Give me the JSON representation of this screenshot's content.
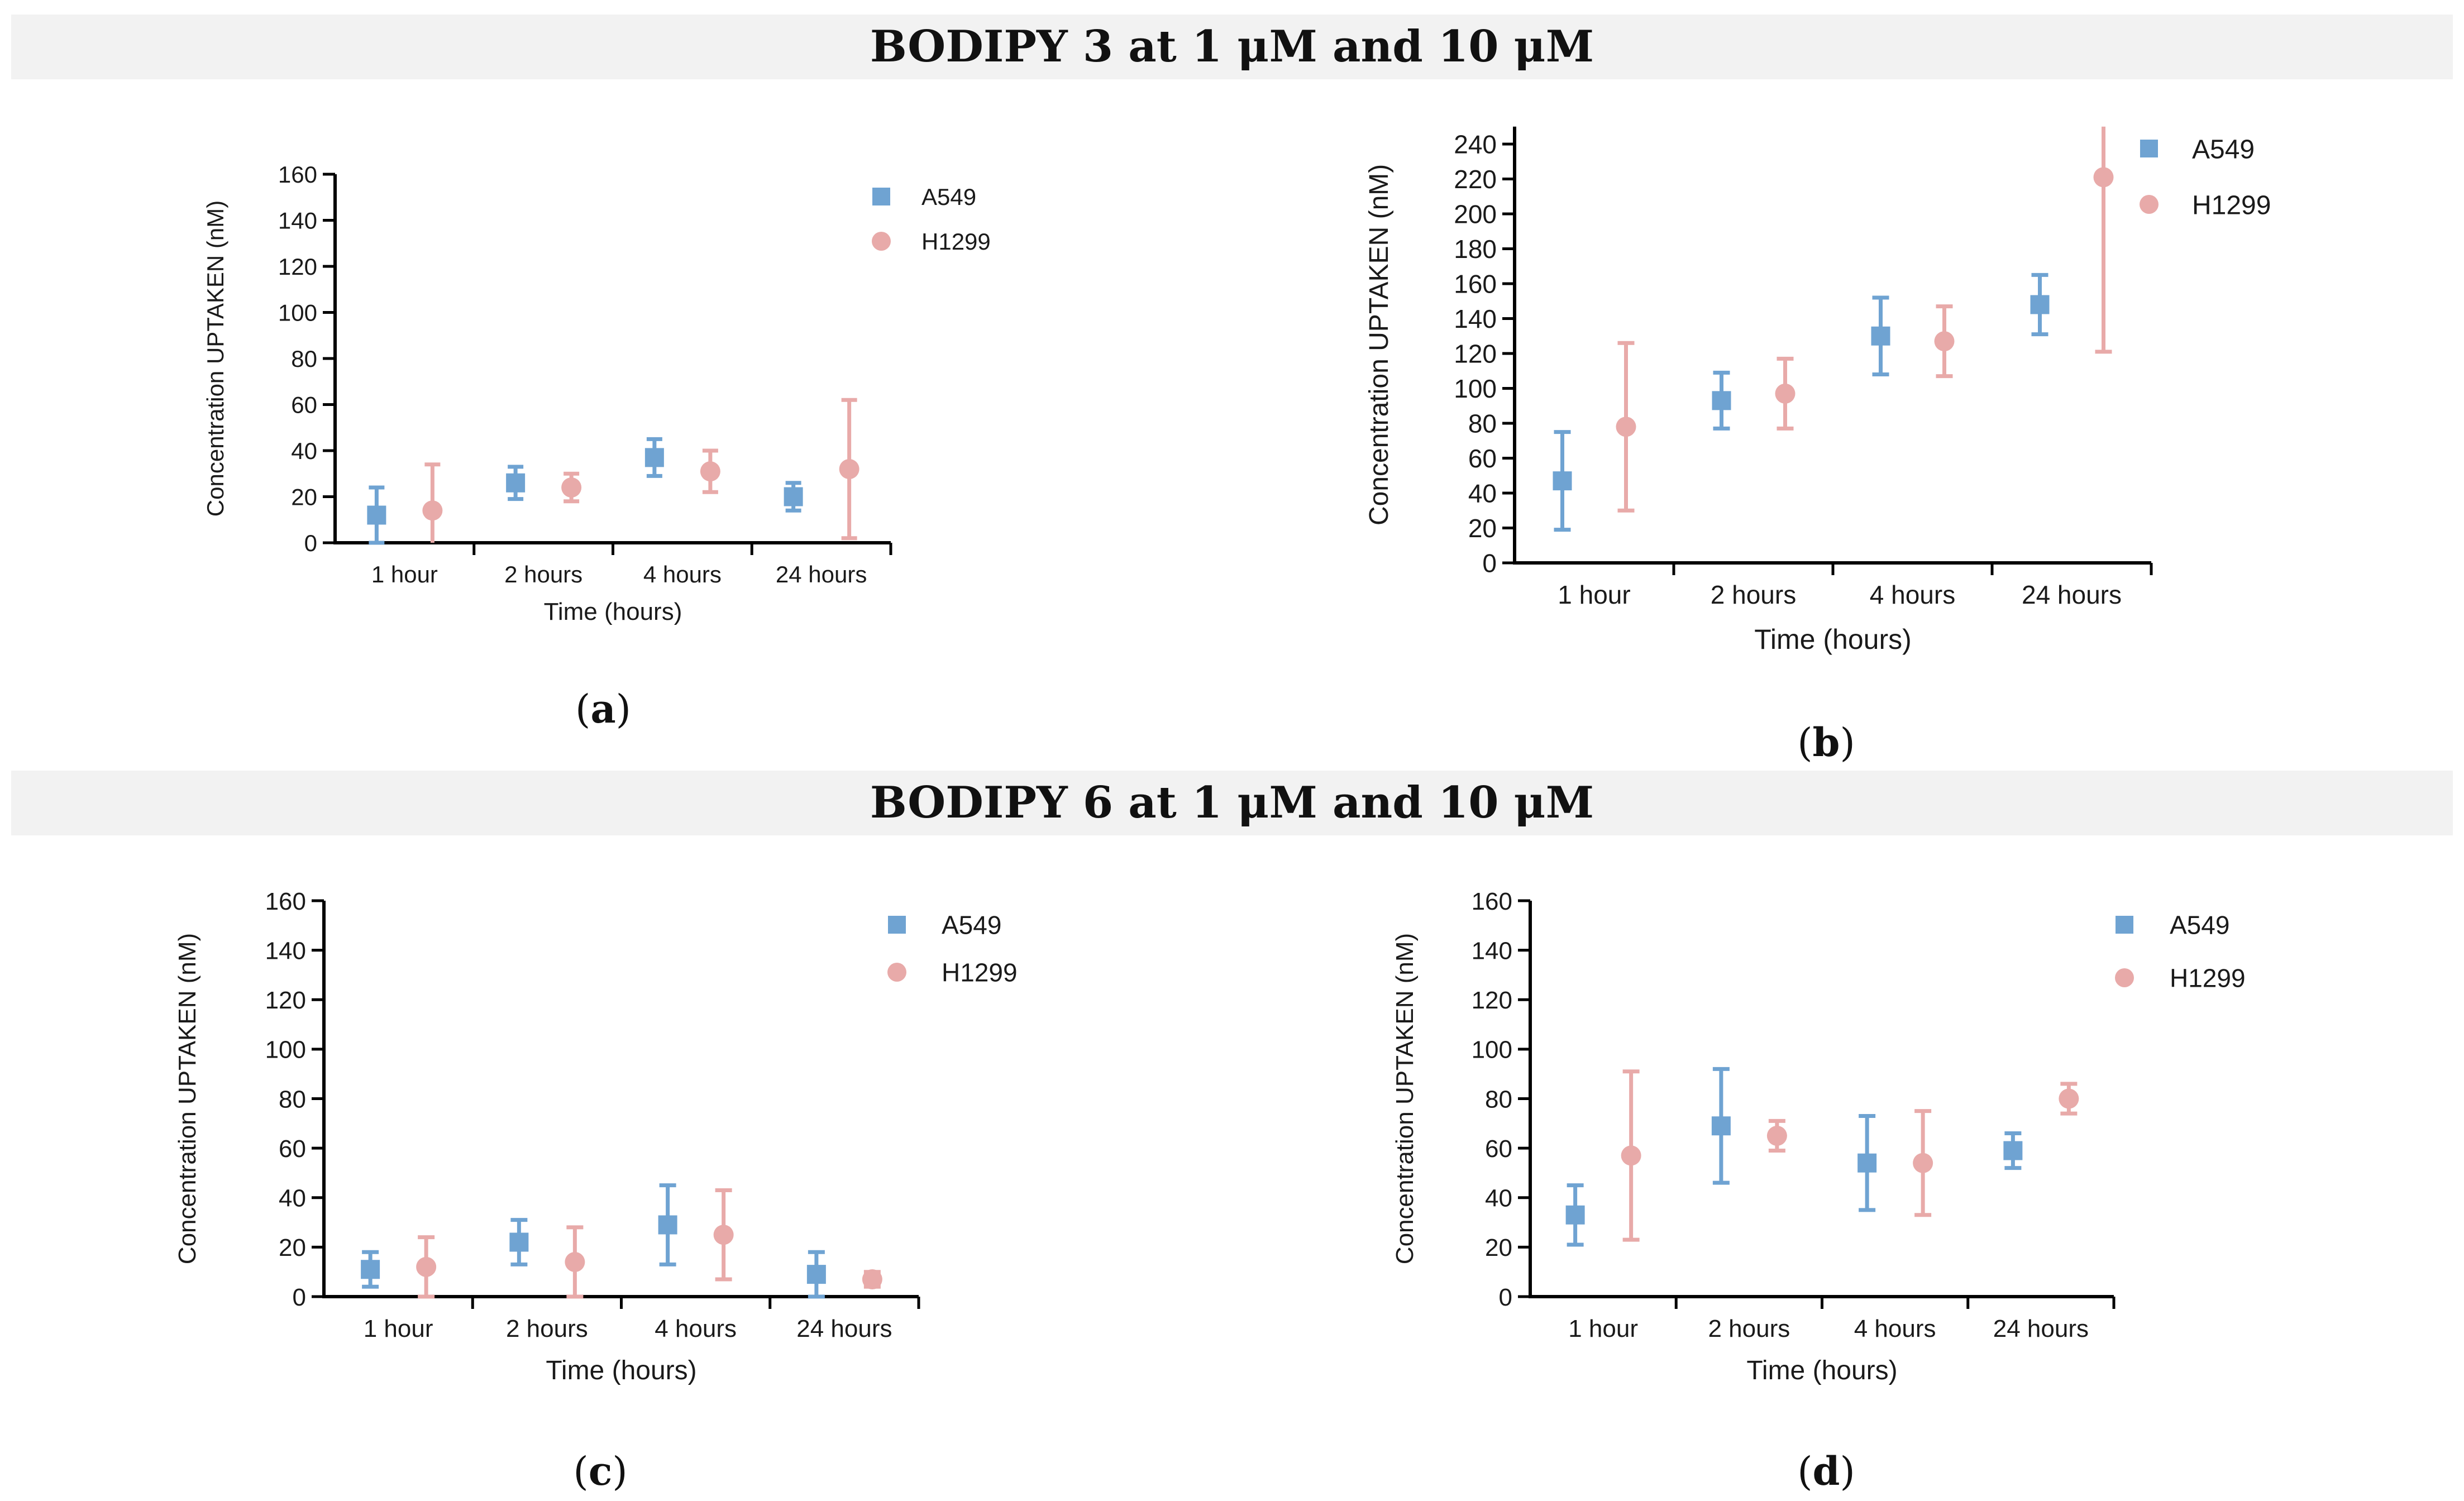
{
  "sections": [
    {
      "title": "BODIPY 3 at 1 μM and 10 μM"
    },
    {
      "title": "BODIPY 6 at 1 μM and 10 μM"
    }
  ],
  "colors": {
    "A549": "#6fa3d2",
    "H1299": "#e8aaa9",
    "axis": "#000000",
    "section_bg": "#f2f2f2"
  },
  "chart_data": [
    {
      "panel": "a",
      "panel_label": "a",
      "type": "scatter",
      "title": "",
      "xlabel": "Time (hours)",
      "ylabel": "Concentration UPTAKEN (nM)",
      "categories": [
        "1 hour",
        "2 hours",
        "4 hours",
        "24 hours"
      ],
      "ylim": [
        0,
        160
      ],
      "yticks": [
        0,
        20,
        40,
        60,
        80,
        100,
        120,
        140,
        160
      ],
      "legend_position": "top-right",
      "series": [
        {
          "name": "A549",
          "marker": "square",
          "values": [
            12,
            26,
            37,
            20
          ],
          "errors": [
            12,
            7,
            8,
            6
          ]
        },
        {
          "name": "H1299",
          "marker": "circle",
          "values": [
            14,
            24,
            31,
            32
          ],
          "errors": [
            20,
            6,
            9,
            30
          ]
        }
      ]
    },
    {
      "panel": "b",
      "panel_label": "b",
      "type": "scatter",
      "title": "",
      "xlabel": "Time (hours)",
      "ylabel": "Concentration UPTAKEN (nM)",
      "categories": [
        "1 hour",
        "2 hours",
        "4 hours",
        "24 hours"
      ],
      "ylim": [
        0,
        250
      ],
      "yticks": [
        0,
        20,
        40,
        60,
        80,
        100,
        120,
        140,
        160,
        180,
        200,
        220,
        240
      ],
      "legend_position": "top-right",
      "series": [
        {
          "name": "A549",
          "marker": "square",
          "values": [
            47,
            93,
            130,
            148
          ],
          "errors": [
            28,
            16,
            22,
            17
          ]
        },
        {
          "name": "H1299",
          "marker": "circle",
          "values": [
            78,
            97,
            127,
            221
          ],
          "errors": [
            48,
            20,
            20,
            100
          ]
        }
      ]
    },
    {
      "panel": "c",
      "panel_label": "c",
      "type": "scatter",
      "title": "",
      "xlabel": "Time (hours)",
      "ylabel": "Concentration UPTAKEN (nM)",
      "categories": [
        "1 hour",
        "2 hours",
        "4 hours",
        "24 hours"
      ],
      "ylim": [
        0,
        160
      ],
      "yticks": [
        0,
        20,
        40,
        60,
        80,
        100,
        120,
        140,
        160
      ],
      "legend_position": "top-right",
      "series": [
        {
          "name": "A549",
          "marker": "square",
          "values": [
            11,
            22,
            29,
            9
          ],
          "errors": [
            7,
            9,
            16,
            9
          ]
        },
        {
          "name": "H1299",
          "marker": "circle",
          "values": [
            12,
            14,
            25,
            7
          ],
          "errors": [
            12,
            14,
            18,
            3
          ]
        }
      ]
    },
    {
      "panel": "d",
      "panel_label": "d",
      "type": "scatter",
      "title": "",
      "xlabel": "Time (hours)",
      "ylabel": "Concentration UPTAKEN (nM)",
      "categories": [
        "1 hour",
        "2 hours",
        "4 hours",
        "24 hours"
      ],
      "ylim": [
        0,
        160
      ],
      "yticks": [
        0,
        20,
        40,
        60,
        80,
        100,
        120,
        140,
        160
      ],
      "legend_position": "top-right",
      "series": [
        {
          "name": "A549",
          "marker": "square",
          "values": [
            33,
            69,
            54,
            59
          ],
          "errors": [
            12,
            23,
            19,
            7
          ]
        },
        {
          "name": "H1299",
          "marker": "circle",
          "values": [
            57,
            65,
            54,
            80
          ],
          "errors": [
            34,
            6,
            21,
            6
          ]
        }
      ]
    }
  ]
}
